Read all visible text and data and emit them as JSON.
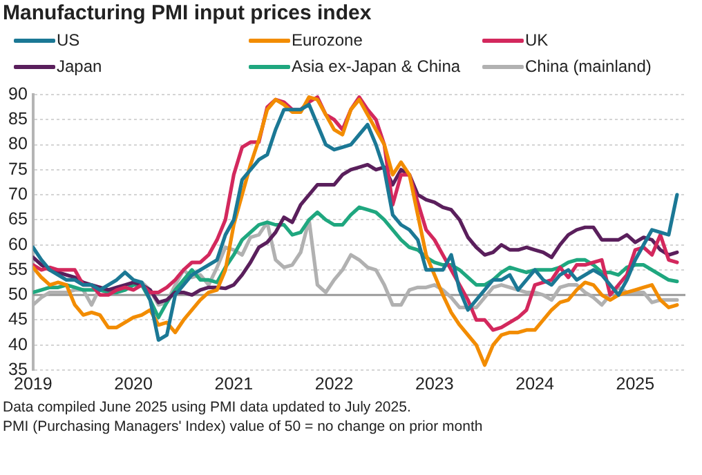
{
  "chart_data": {
    "type": "line",
    "title": "Manufacturing PMI input prices index",
    "x": [
      "2019-01",
      "2019-02",
      "2019-03",
      "2019-04",
      "2019-05",
      "2019-06",
      "2019-07",
      "2019-08",
      "2019-09",
      "2019-10",
      "2019-11",
      "2019-12",
      "2020-01",
      "2020-02",
      "2020-03",
      "2020-04",
      "2020-05",
      "2020-06",
      "2020-07",
      "2020-08",
      "2020-09",
      "2020-10",
      "2020-11",
      "2020-12",
      "2021-01",
      "2021-02",
      "2021-03",
      "2021-04",
      "2021-05",
      "2021-06",
      "2021-07",
      "2021-08",
      "2021-09",
      "2021-10",
      "2021-11",
      "2021-12",
      "2022-01",
      "2022-02",
      "2022-03",
      "2022-04",
      "2022-05",
      "2022-06",
      "2022-07",
      "2022-08",
      "2022-09",
      "2022-10",
      "2022-11",
      "2022-12",
      "2023-01",
      "2023-02",
      "2023-03",
      "2023-04",
      "2023-05",
      "2023-06",
      "2023-07",
      "2023-08",
      "2023-09",
      "2023-10",
      "2023-11",
      "2023-12",
      "2024-01",
      "2024-02",
      "2024-03",
      "2024-04",
      "2024-05",
      "2024-06",
      "2024-07",
      "2024-08",
      "2024-09",
      "2024-10",
      "2024-11",
      "2024-12",
      "2025-01",
      "2025-02",
      "2025-03",
      "2025-04",
      "2025-05",
      "2025-06"
    ],
    "series": [
      {
        "name": "US",
        "color": "#1b7895",
        "values": [
          59.5,
          57,
          55,
          54,
          53,
          53,
          52,
          52,
          51,
          52,
          53,
          54.5,
          53,
          52.5,
          49,
          41,
          42,
          50,
          52,
          54,
          55,
          56,
          57,
          62,
          65,
          73,
          75,
          77,
          78,
          83,
          87,
          87,
          87,
          88,
          84,
          80,
          79,
          79.5,
          80,
          82,
          84,
          80,
          75,
          66,
          64,
          63,
          61,
          55,
          55,
          55,
          58,
          51,
          47,
          49,
          51,
          53,
          53,
          54,
          51,
          53,
          55,
          53,
          52,
          54,
          55,
          53,
          54,
          55,
          54,
          52,
          50,
          53,
          57,
          60,
          63,
          62.5,
          62,
          70
        ]
      },
      {
        "name": "Eurozone",
        "color": "#f28c00",
        "values": [
          55.5,
          53.5,
          52,
          52.5,
          52,
          48,
          46,
          46.5,
          46,
          43.5,
          43.5,
          44.5,
          45.5,
          46,
          47,
          44,
          44.5,
          42.5,
          45,
          47,
          49,
          50.5,
          51,
          55,
          64,
          70,
          76,
          81,
          87,
          89,
          88,
          86.5,
          86.5,
          89.5,
          89,
          86,
          83,
          82,
          87,
          89,
          86,
          83,
          80,
          74,
          76.5,
          74,
          66,
          58,
          54,
          50,
          46.5,
          44,
          42,
          40,
          36,
          40,
          42,
          42.5,
          42.5,
          43,
          43,
          45,
          47,
          48.5,
          49,
          51,
          52.5,
          52,
          50,
          49,
          50,
          50.5,
          51,
          51.5,
          52,
          49,
          47.5,
          48
        ]
      },
      {
        "name": "UK",
        "color": "#d3285d",
        "values": [
          56,
          55,
          55.5,
          55,
          55,
          55,
          52,
          52,
          50,
          50,
          51,
          51.5,
          51,
          52,
          50.5,
          50.5,
          51.5,
          53,
          55,
          56.5,
          56.5,
          58,
          61,
          65,
          74,
          79.5,
          80.5,
          80.5,
          87.5,
          89,
          88.5,
          87,
          87,
          88.5,
          89.5,
          86,
          85,
          83,
          87,
          89.5,
          87,
          85,
          80,
          68,
          74,
          74,
          68.5,
          63,
          61,
          58,
          55,
          52,
          49,
          45,
          45,
          43,
          43.5,
          44.5,
          45.5,
          47,
          52,
          52.5,
          53,
          55.5,
          53.5,
          56,
          56,
          56.5,
          57,
          50,
          52,
          54,
          59,
          59.5,
          58,
          62,
          57,
          56.5
        ]
      },
      {
        "name": "Japan",
        "color": "#5a1f5c",
        "values": [
          57.5,
          56,
          55,
          54.5,
          54,
          53.5,
          52.5,
          52,
          51.5,
          51,
          51.5,
          52,
          52.5,
          52,
          51,
          48.5,
          49,
          50.5,
          50.5,
          50,
          51,
          51.5,
          51.5,
          51.3,
          52,
          54,
          56.5,
          59.5,
          60.5,
          62.5,
          65.5,
          64.5,
          68,
          70,
          72,
          72,
          72,
          74,
          75,
          75.5,
          76,
          75,
          75.5,
          72,
          75,
          74,
          70,
          69,
          68.5,
          67.5,
          67,
          65,
          61.5,
          59.5,
          58,
          58.5,
          60,
          59,
          59,
          59.5,
          59,
          58.5,
          57.5,
          60,
          62,
          63,
          63.5,
          63.5,
          61,
          61,
          61,
          62,
          60.5,
          61.5,
          61,
          59,
          58,
          58.5
        ]
      },
      {
        "name": "Asia ex-Japan & China",
        "color": "#1fa77f",
        "values": [
          50.5,
          51,
          51.5,
          51.5,
          52,
          51.5,
          51,
          51,
          51,
          50.5,
          50.5,
          51,
          52,
          52,
          49,
          45.5,
          48.5,
          51,
          53,
          55,
          53,
          53,
          52.5,
          55.5,
          58,
          61,
          62.5,
          64,
          64.5,
          64,
          64,
          62,
          62.5,
          65,
          66.5,
          65,
          64,
          64,
          66,
          67.5,
          67,
          66.5,
          65,
          63,
          61,
          59.5,
          59,
          57.5,
          56.5,
          56,
          56,
          55,
          53.5,
          52,
          52,
          53,
          54.5,
          55.5,
          55,
          54.5,
          55,
          55,
          55,
          55.5,
          56.5,
          57,
          57,
          56,
          54.5,
          54.5,
          54,
          55.5,
          56,
          56,
          55,
          54,
          53,
          52.7
        ]
      },
      {
        "name": "China (mainland)",
        "color": "#b1b1b1",
        "values": [
          48,
          49.5,
          50.5,
          50.5,
          50.5,
          51,
          51,
          48,
          51.5,
          51,
          50.5,
          51,
          52,
          52.5,
          51,
          48,
          48.5,
          52,
          55,
          53.5,
          54,
          52,
          55.5,
          59.5,
          59,
          58,
          61.5,
          62,
          64.5,
          57,
          55.5,
          56,
          58.5,
          65,
          52,
          50.5,
          53,
          55,
          58,
          57,
          55.5,
          55,
          52,
          48,
          48,
          51,
          51.5,
          51.5,
          52,
          51,
          49.5,
          47.5,
          47.5,
          47.5,
          49.5,
          51.5,
          52,
          51.5,
          51,
          50.5,
          50.5,
          50,
          49,
          51.5,
          52,
          52,
          50.5,
          49.5,
          48,
          50,
          51.5,
          50.5,
          50.5,
          50.5,
          48.5,
          49,
          49,
          49
        ]
      }
    ],
    "xlim": [
      "2019-01",
      "2025-07"
    ],
    "xticks": [
      "2019",
      "2020",
      "2021",
      "2022",
      "2023",
      "2024",
      "2025"
    ],
    "ylim": [
      35,
      90
    ],
    "yticks": [
      35,
      40,
      45,
      50,
      55,
      60,
      65,
      70,
      75,
      80,
      85,
      90
    ],
    "grid": "y",
    "legend": "top",
    "line_style": "solid",
    "marker": "none",
    "ref_lines": [
      {
        "axis": "y",
        "value": 50,
        "color": "#9a9a9a"
      }
    ],
    "annotations": [
      "Data compiled June 2025 using PMI data updated to July 2025.",
      "PMI (Purchasing Managers' Index) value of 50 = no change on prior month"
    ]
  }
}
